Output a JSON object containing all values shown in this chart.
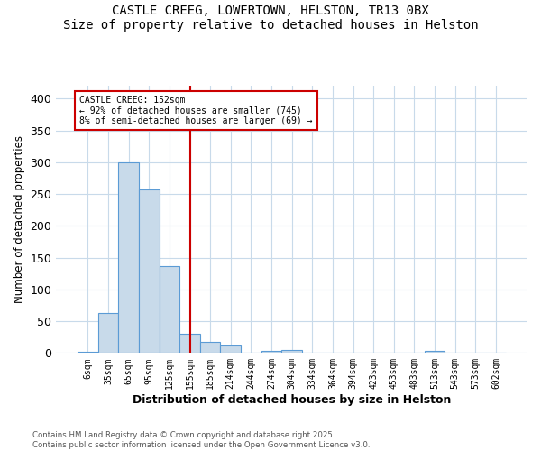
{
  "title1": "CASTLE CREEG, LOWERTOWN, HELSTON, TR13 0BX",
  "title2": "Size of property relative to detached houses in Helston",
  "xlabel": "Distribution of detached houses by size in Helston",
  "ylabel": "Number of detached properties",
  "footnote1": "Contains HM Land Registry data © Crown copyright and database right 2025.",
  "footnote2": "Contains public sector information licensed under the Open Government Licence v3.0.",
  "annotation_line1": "CASTLE CREEG: 152sqm",
  "annotation_line2": "← 92% of detached houses are smaller (745)",
  "annotation_line3": "8% of semi-detached houses are larger (69) →",
  "bar_color": "#c8daea",
  "bar_edge_color": "#5b9bd5",
  "vline_color": "#cc0000",
  "annotation_box_edgecolor": "#cc0000",
  "grid_color": "#c8daea",
  "bins": [
    "6sqm",
    "35sqm",
    "65sqm",
    "95sqm",
    "125sqm",
    "155sqm",
    "185sqm",
    "214sqm",
    "244sqm",
    "274sqm",
    "304sqm",
    "334sqm",
    "364sqm",
    "394sqm",
    "423sqm",
    "453sqm",
    "483sqm",
    "513sqm",
    "543sqm",
    "573sqm",
    "602sqm"
  ],
  "values": [
    2,
    63,
    300,
    257,
    136,
    30,
    18,
    12,
    0,
    3,
    5,
    0,
    0,
    0,
    0,
    0,
    0,
    3,
    0,
    0,
    0
  ],
  "vline_x_index": 5,
  "ylim": [
    0,
    420
  ],
  "yticks": [
    0,
    50,
    100,
    150,
    200,
    250,
    300,
    350,
    400
  ]
}
